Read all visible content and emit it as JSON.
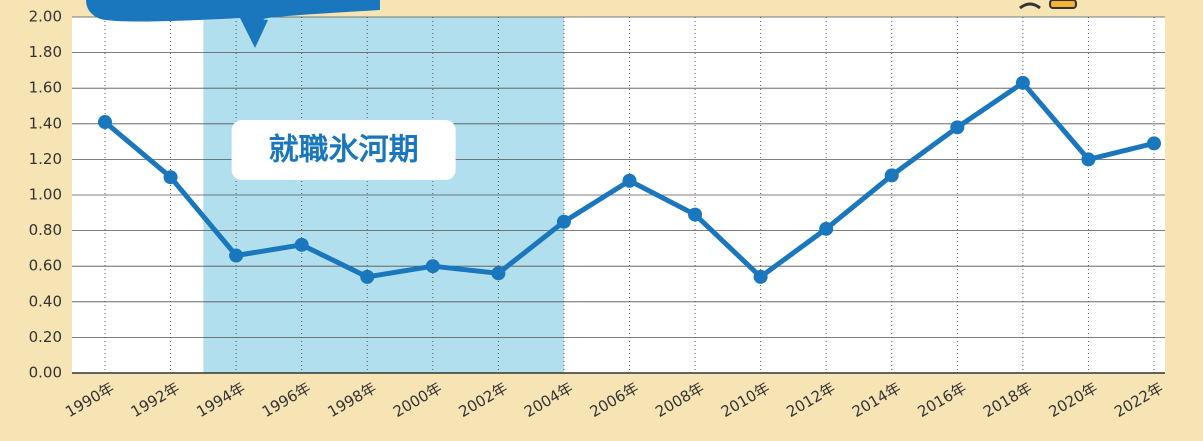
{
  "chart_data": {
    "type": "line",
    "categories": [
      "1990年",
      "1992年",
      "1994年",
      "1996年",
      "1998年",
      "2000年",
      "2002年",
      "2004年",
      "2006年",
      "2008年",
      "2010年",
      "2012年",
      "2014年",
      "2016年",
      "2018年",
      "2020年",
      "2022年"
    ],
    "series": [
      {
        "color": "#1a77bd",
        "values": [
          1.41,
          1.1,
          0.66,
          0.72,
          0.54,
          0.6,
          0.56,
          0.85,
          1.08,
          0.89,
          0.54,
          0.81,
          1.11,
          1.38,
          1.63,
          1.2,
          1.29
        ]
      }
    ],
    "ylim": [
      0,
      2
    ],
    "yticks": [
      {
        "value": 0,
        "label": "0.00"
      },
      {
        "value": 0.2,
        "label": "0.20"
      },
      {
        "value": 0.4,
        "label": "0.40"
      },
      {
        "value": 0.6,
        "label": "0.60"
      },
      {
        "value": 0.8,
        "label": "0.80"
      },
      {
        "value": 1,
        "label": "1.00"
      },
      {
        "value": 1.2,
        "label": "1.20"
      },
      {
        "value": 1.4,
        "label": "1.40"
      },
      {
        "value": 1.6,
        "label": "1.60"
      },
      {
        "value": 1.8,
        "label": "1.80"
      },
      {
        "value": 2,
        "label": "2.00"
      }
    ],
    "grid": true,
    "annotation": "就職氷河期"
  }
}
